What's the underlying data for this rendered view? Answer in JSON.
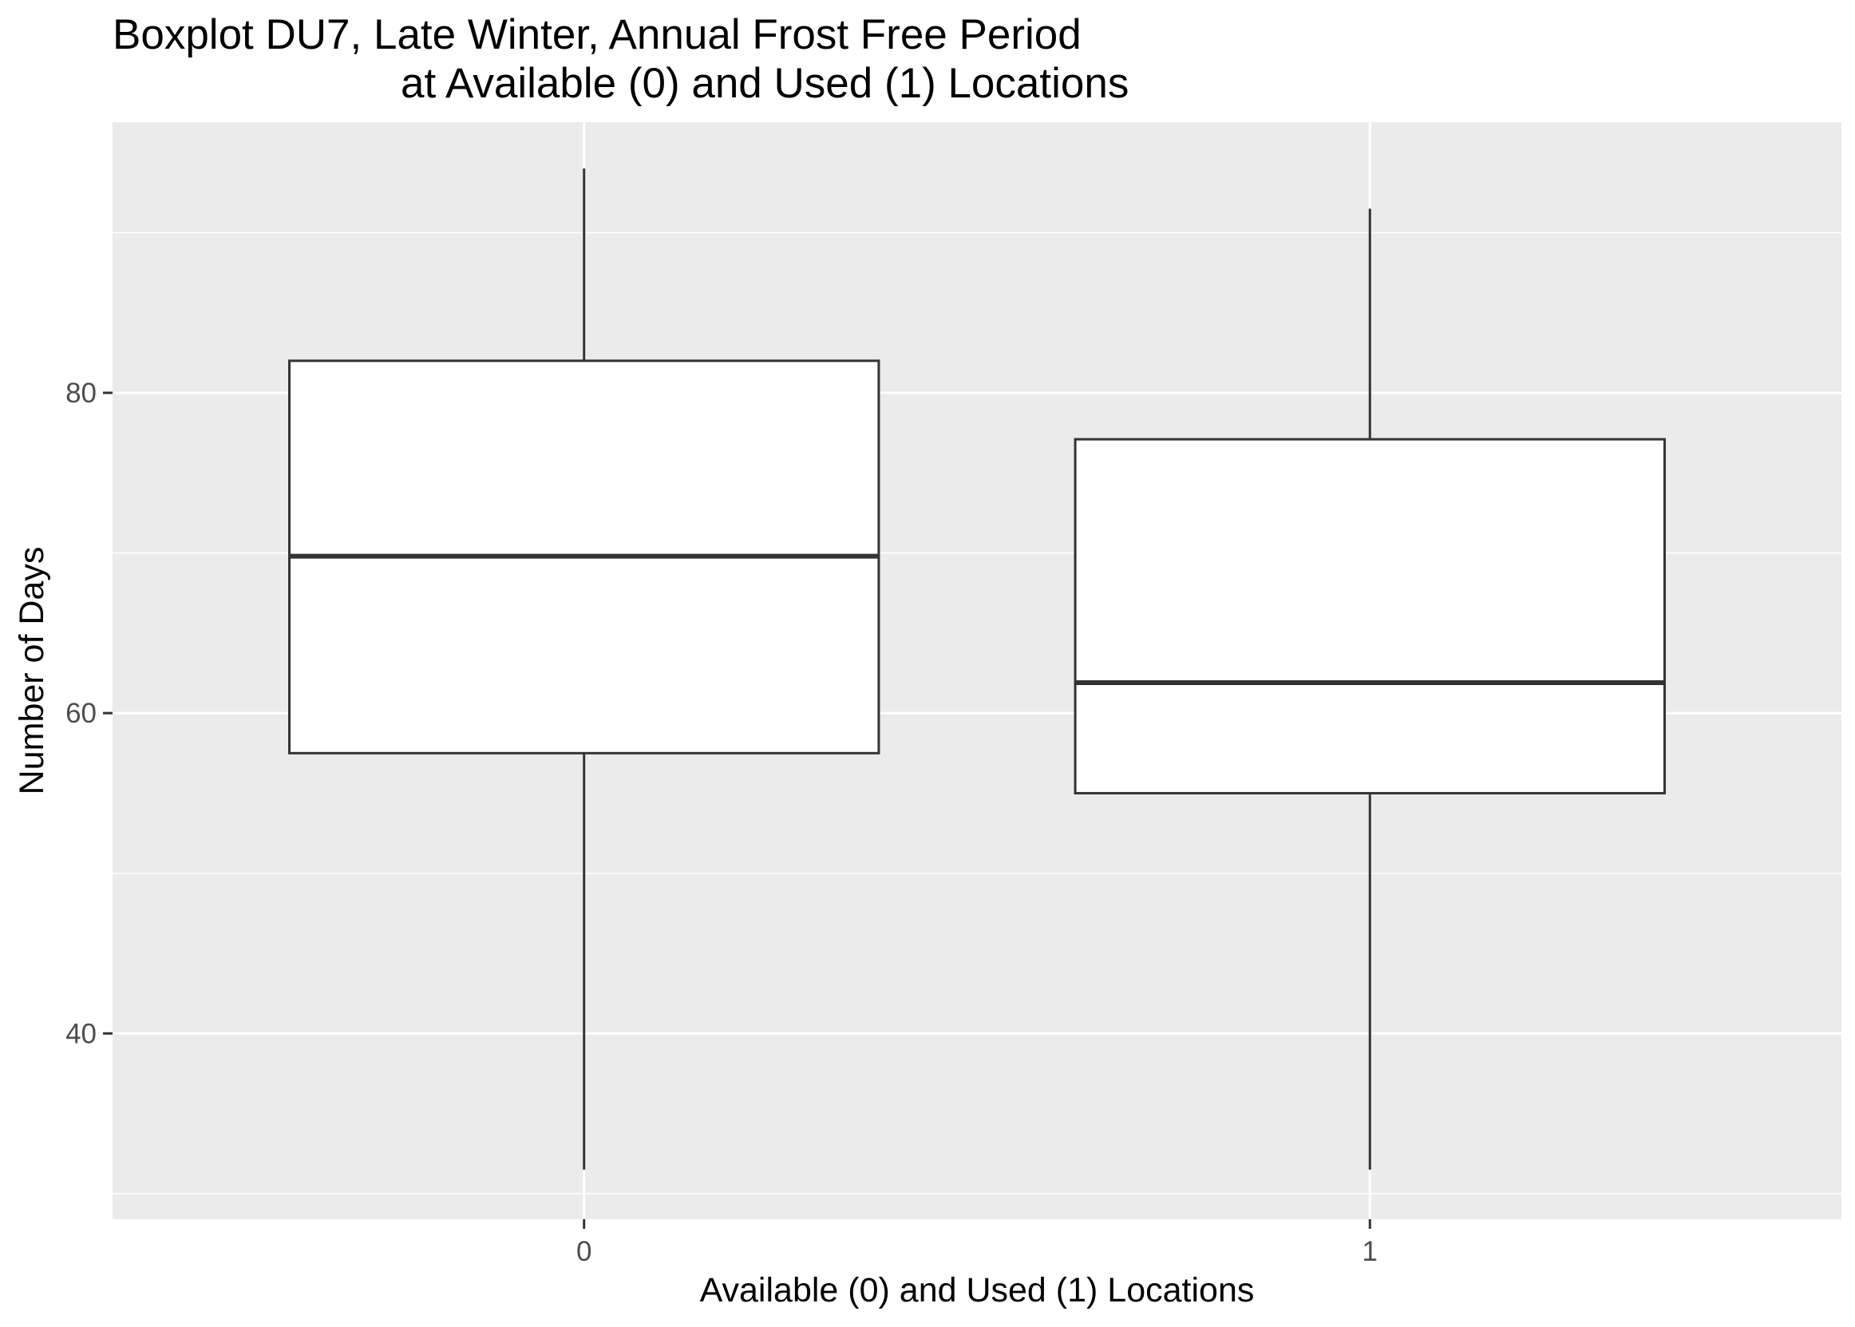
{
  "chart_data": {
    "type": "boxplot",
    "title": "Boxplot DU7, Late Winter, Annual Frost Free Period",
    "subtitle": "at Available (0) and Used (1) Locations",
    "xlabel": "Available (0) and Used (1) Locations",
    "ylabel": "Number of Days",
    "categories": [
      "0",
      "1"
    ],
    "boxes": [
      {
        "category": "0",
        "whisker_low": 31.5,
        "q1": 57.5,
        "median": 69.8,
        "q3": 82.0,
        "whisker_high": 94.0
      },
      {
        "category": "1",
        "whisker_low": 31.5,
        "q1": 55.0,
        "median": 61.9,
        "q3": 77.1,
        "whisker_high": 91.5
      }
    ],
    "ylim": [
      28.4,
      96.9
    ],
    "y_ticks": [
      40,
      60,
      80
    ],
    "grid": true,
    "panel_background": "#ebebeb",
    "grid_color": "#ffffff",
    "box_fill": "#ffffff",
    "box_stroke": "#333333"
  }
}
